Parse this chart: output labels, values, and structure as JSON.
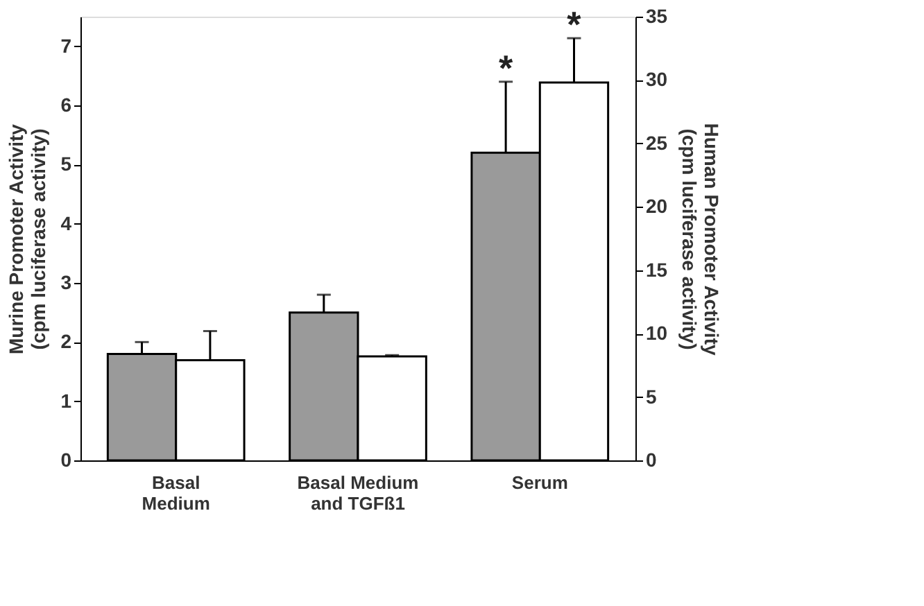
{
  "chart_data": {
    "type": "bar",
    "categories": [
      "Basal\nMedium",
      "Basal Medium\nand TGFß1",
      "Serum"
    ],
    "ylabel": "Murine Promoter Activity\n(cpm luciferase activity)",
    "y2label": "Human Promoter Activity\n(cpm luciferase activity)",
    "series": [
      {
        "color": "#9a9a9a",
        "values": [
          1.8,
          2.5,
          5.2
        ],
        "errors": [
          0.2,
          0.3,
          1.2
        ]
      },
      {
        "color": "#ffffff",
        "axis": "y2",
        "values": [
          7.9,
          8.2,
          29.8
        ],
        "errors": [
          2.3,
          0.1,
          3.5
        ]
      }
    ],
    "ylim": [
      0,
      7.5
    ],
    "yticks": [
      0,
      1,
      2,
      3,
      4,
      5,
      6,
      7
    ],
    "y2lim": [
      0,
      35
    ],
    "y2ticks": [
      0,
      5,
      10,
      15,
      20,
      25,
      30,
      35
    ],
    "annotations": [
      "*",
      "*"
    ]
  }
}
